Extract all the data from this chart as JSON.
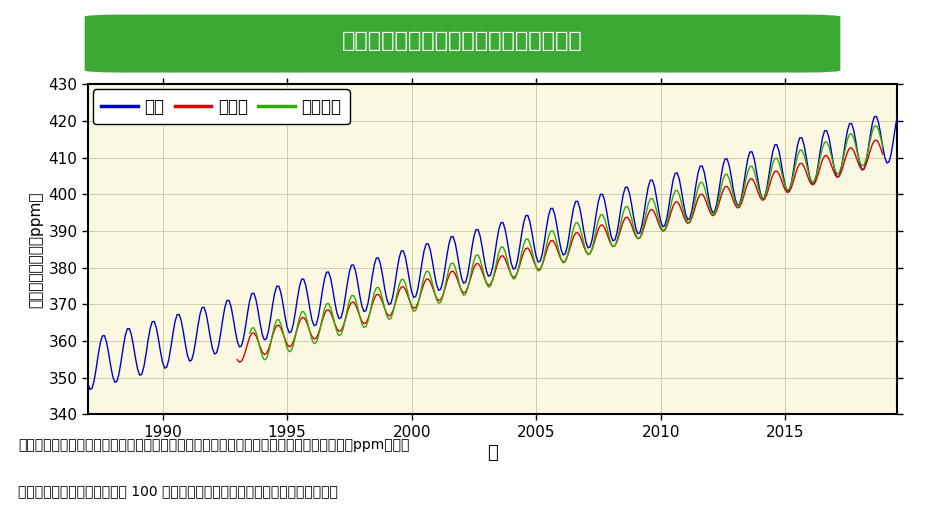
{
  "title": "国内の大気中二酸化炭素濃度の経年変化",
  "title_color": "#ffffff",
  "title_bg_color": "#3aaa35",
  "xlabel": "年",
  "ylabel": "二酸化炭素濃度（ppm）",
  "ylim": [
    340,
    430
  ],
  "yticks": [
    340,
    350,
    360,
    370,
    380,
    390,
    400,
    410,
    420,
    430
  ],
  "xlim_start": 1987.0,
  "xlim_end": 2019.5,
  "xticks": [
    1990,
    1995,
    2000,
    2005,
    2010,
    2015
  ],
  "bg_color": "#fffff0",
  "plot_bg_color": "#faf8e0",
  "grid_color": "#c8c8a0",
  "stations": [
    "綾里",
    "南鳥島",
    "与那国島"
  ],
  "colors": [
    "#0000cc",
    "#dd0000",
    "#33aa00"
  ],
  "caption_line1": "気象庁が綾里、南鳥島、与那国島で観測した大気中の二酸化炭素月平均濃度の経年変化。ppm（ピー",
  "caption_line2": "ピーエム）は、大気中の分子 100 万個中にある対象物質の個数を表す単位です。"
}
